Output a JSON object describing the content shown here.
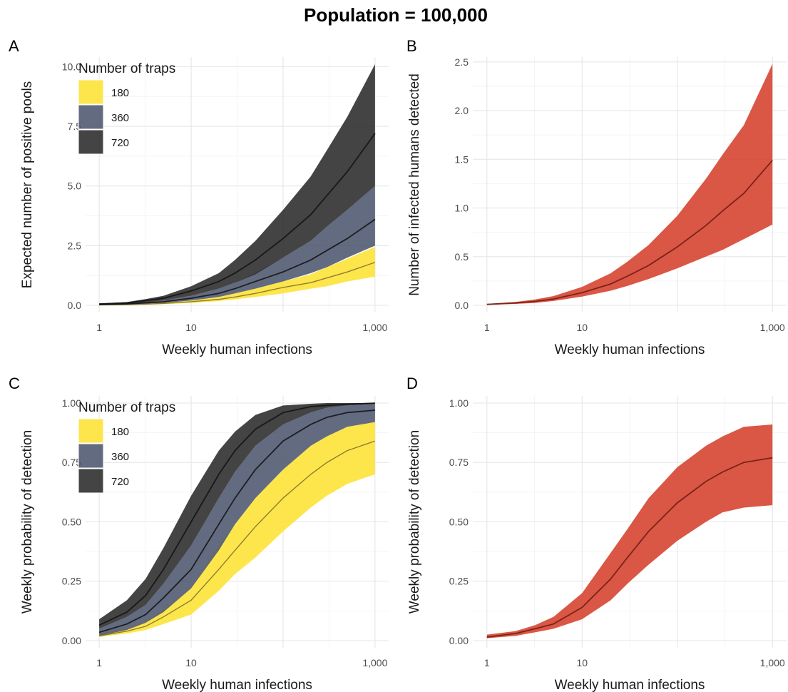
{
  "figure": {
    "title": "Population = 100,000"
  },
  "chart_data": [
    {
      "panel": "A",
      "type": "area",
      "xlabel": "Weekly human infections",
      "ylabel": "Expected number of positive pools",
      "xscale": "log10",
      "xlim": [
        1,
        1000
      ],
      "ylim": [
        0,
        10.4
      ],
      "xticks": [
        1,
        10,
        1000
      ],
      "xtick_labels": [
        "1",
        "10",
        "1,000"
      ],
      "yticks": [
        0,
        2.5,
        5,
        7.5,
        10
      ],
      "ytick_labels": [
        "0.0",
        "2.5",
        "5.0",
        "7.5",
        "10.0"
      ],
      "grid": true,
      "legend": {
        "title": "Number of traps",
        "placement": "top-left",
        "entries": [
          "180",
          "360",
          "720"
        ]
      },
      "x": [
        1,
        2,
        3.2,
        5,
        10,
        20,
        30,
        50,
        100,
        200,
        300,
        500,
        1000
      ],
      "series": [
        {
          "name": "180",
          "color": "#FDE333",
          "median": [
            0.02,
            0.03,
            0.05,
            0.08,
            0.15,
            0.25,
            0.35,
            0.5,
            0.75,
            0.95,
            1.15,
            1.4,
            1.8
          ],
          "lower": [
            0.01,
            0.02,
            0.03,
            0.05,
            0.1,
            0.18,
            0.25,
            0.35,
            0.5,
            0.7,
            0.8,
            1.0,
            1.2
          ],
          "upper": [
            0.03,
            0.04,
            0.07,
            0.11,
            0.2,
            0.35,
            0.5,
            0.7,
            1.0,
            1.3,
            1.6,
            1.95,
            2.45
          ]
        },
        {
          "name": "360",
          "color": "#4D5670",
          "median": [
            0.03,
            0.06,
            0.1,
            0.15,
            0.3,
            0.5,
            0.7,
            1.0,
            1.4,
            1.9,
            2.3,
            2.8,
            3.6
          ],
          "lower": [
            0.02,
            0.04,
            0.07,
            0.1,
            0.2,
            0.35,
            0.5,
            0.7,
            1.0,
            1.35,
            1.6,
            2.0,
            2.5
          ],
          "upper": [
            0.05,
            0.09,
            0.14,
            0.2,
            0.4,
            0.7,
            0.95,
            1.35,
            2.0,
            2.7,
            3.3,
            4.0,
            5.0
          ]
        },
        {
          "name": "720",
          "color": "#2A2A2A",
          "median": [
            0.06,
            0.1,
            0.2,
            0.3,
            0.6,
            1.0,
            1.35,
            1.9,
            2.8,
            3.8,
            4.6,
            5.6,
            7.2
          ],
          "lower": [
            0.03,
            0.06,
            0.12,
            0.2,
            0.4,
            0.7,
            0.95,
            1.3,
            2.0,
            2.7,
            3.3,
            4.0,
            5.0
          ],
          "upper": [
            0.08,
            0.14,
            0.26,
            0.4,
            0.8,
            1.35,
            1.9,
            2.7,
            4.0,
            5.4,
            6.5,
            7.9,
            10.1
          ]
        }
      ]
    },
    {
      "panel": "B",
      "type": "area",
      "xlabel": "Weekly human infections",
      "ylabel": "Number of infected humans detected",
      "xscale": "log10",
      "xlim": [
        1,
        1000
      ],
      "ylim": [
        0,
        2.55
      ],
      "xticks": [
        1,
        10,
        1000
      ],
      "xtick_labels": [
        "1",
        "10",
        "1,000"
      ],
      "yticks": [
        0,
        0.5,
        1,
        1.5,
        2,
        2.5
      ],
      "ytick_labels": [
        "0.0",
        "0.5",
        "1.0",
        "1.5",
        "2.0",
        "2.5"
      ],
      "grid": true,
      "x": [
        1,
        2,
        3.2,
        5,
        10,
        20,
        30,
        50,
        100,
        200,
        300,
        500,
        1000
      ],
      "series": [
        {
          "name": "",
          "color": "#D5402B",
          "median": [
            0.01,
            0.025,
            0.04,
            0.065,
            0.13,
            0.22,
            0.3,
            0.41,
            0.6,
            0.82,
            0.97,
            1.15,
            1.49
          ],
          "lower": [
            0.005,
            0.015,
            0.025,
            0.045,
            0.09,
            0.15,
            0.2,
            0.27,
            0.38,
            0.5,
            0.57,
            0.68,
            0.83
          ],
          "upper": [
            0.015,
            0.035,
            0.06,
            0.095,
            0.19,
            0.33,
            0.45,
            0.62,
            0.92,
            1.3,
            1.55,
            1.85,
            2.48
          ]
        }
      ]
    },
    {
      "panel": "C",
      "type": "area",
      "xlabel": "Weekly human infections",
      "ylabel": "Weekly probability of detection",
      "xscale": "log10",
      "xlim": [
        1,
        1000
      ],
      "ylim": [
        0,
        1.03
      ],
      "xticks": [
        1,
        10,
        1000
      ],
      "xtick_labels": [
        "1",
        "10",
        "1,000"
      ],
      "yticks": [
        0,
        0.25,
        0.5,
        0.75,
        1
      ],
      "ytick_labels": [
        "0.00",
        "0.25",
        "0.50",
        "0.75",
        "1.00"
      ],
      "grid": true,
      "legend": {
        "title": "Number of traps",
        "placement": "top-left",
        "entries": [
          "180",
          "360",
          "720"
        ]
      },
      "x": [
        1,
        2,
        3.2,
        5,
        10,
        20,
        30,
        50,
        100,
        200,
        300,
        500,
        1000
      ],
      "series": [
        {
          "name": "180",
          "color": "#FDE333",
          "median": [
            0.02,
            0.04,
            0.06,
            0.1,
            0.17,
            0.3,
            0.38,
            0.48,
            0.6,
            0.7,
            0.75,
            0.8,
            0.84
          ],
          "lower": [
            0.015,
            0.03,
            0.045,
            0.07,
            0.11,
            0.21,
            0.28,
            0.35,
            0.46,
            0.56,
            0.61,
            0.66,
            0.7
          ],
          "upper": [
            0.03,
            0.05,
            0.08,
            0.13,
            0.22,
            0.4,
            0.49,
            0.6,
            0.72,
            0.82,
            0.86,
            0.9,
            0.92
          ]
        },
        {
          "name": "360",
          "color": "#4D5670",
          "median": [
            0.035,
            0.07,
            0.11,
            0.18,
            0.3,
            0.49,
            0.6,
            0.72,
            0.84,
            0.91,
            0.94,
            0.96,
            0.97
          ],
          "lower": [
            0.02,
            0.045,
            0.075,
            0.12,
            0.22,
            0.38,
            0.49,
            0.6,
            0.72,
            0.82,
            0.86,
            0.9,
            0.92
          ],
          "upper": [
            0.05,
            0.1,
            0.15,
            0.24,
            0.4,
            0.6,
            0.71,
            0.82,
            0.91,
            0.96,
            0.98,
            0.99,
            0.995
          ]
        },
        {
          "name": "720",
          "color": "#2A2A2A",
          "median": [
            0.065,
            0.12,
            0.19,
            0.3,
            0.5,
            0.7,
            0.8,
            0.89,
            0.96,
            0.985,
            0.99,
            0.995,
            1.0
          ],
          "lower": [
            0.05,
            0.1,
            0.15,
            0.24,
            0.4,
            0.6,
            0.71,
            0.82,
            0.91,
            0.96,
            0.98,
            0.99,
            0.995
          ],
          "upper": [
            0.09,
            0.17,
            0.26,
            0.39,
            0.61,
            0.8,
            0.88,
            0.95,
            0.99,
            0.997,
            1.0,
            1.0,
            1.0
          ]
        }
      ]
    },
    {
      "panel": "D",
      "type": "area",
      "xlabel": "Weekly human infections",
      "ylabel": "Weekly probability of detection",
      "xscale": "log10",
      "xlim": [
        1,
        1000
      ],
      "ylim": [
        0,
        1.03
      ],
      "xticks": [
        1,
        10,
        1000
      ],
      "xtick_labels": [
        "1",
        "10",
        "1,000"
      ],
      "yticks": [
        0,
        0.25,
        0.5,
        0.75,
        1
      ],
      "ytick_labels": [
        "0.00",
        "0.25",
        "0.50",
        "0.75",
        "1.00"
      ],
      "grid": true,
      "x": [
        1,
        2,
        3.2,
        5,
        10,
        20,
        30,
        50,
        100,
        200,
        300,
        500,
        1000
      ],
      "series": [
        {
          "name": "",
          "color": "#D5402B",
          "median": [
            0.015,
            0.03,
            0.05,
            0.07,
            0.14,
            0.26,
            0.35,
            0.46,
            0.58,
            0.67,
            0.71,
            0.75,
            0.77
          ],
          "lower": [
            0.01,
            0.02,
            0.035,
            0.05,
            0.09,
            0.17,
            0.24,
            0.32,
            0.42,
            0.5,
            0.54,
            0.56,
            0.57
          ],
          "upper": [
            0.025,
            0.04,
            0.065,
            0.1,
            0.2,
            0.37,
            0.47,
            0.6,
            0.73,
            0.82,
            0.86,
            0.9,
            0.91
          ]
        }
      ]
    }
  ]
}
